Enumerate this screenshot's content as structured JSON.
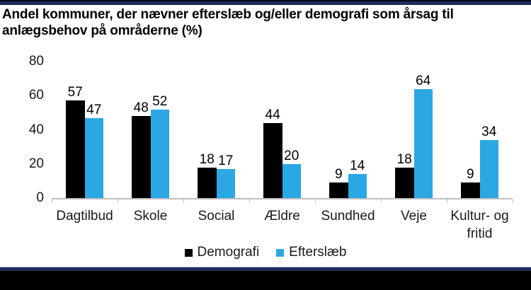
{
  "chart_data": {
    "type": "bar",
    "title": "Andel kommuner, der nævner efterslæb og/eller demografi som årsag til\nanlægsbehov på områderne (%)",
    "categories": [
      "Dagtilbud",
      "Skole",
      "Social",
      "Ældre",
      "Sundhed",
      "Veje",
      "Kultur- og\nfritid"
    ],
    "series": [
      {
        "key": "demografi",
        "name": "Demografi",
        "color": "#000000",
        "values": [
          57,
          48,
          18,
          44,
          9,
          18,
          9
        ]
      },
      {
        "key": "efterslaeb",
        "name": "Efterslæb",
        "color": "#2BA7E4",
        "values": [
          47,
          52,
          17,
          20,
          14,
          64,
          34
        ]
      }
    ],
    "yticks": [
      0,
      20,
      40,
      60,
      80
    ],
    "ylim": [
      0,
      80
    ],
    "xlabel": "",
    "ylabel": "",
    "grid": false,
    "legend_position": "bottom",
    "data_labels": true
  },
  "colors": {
    "stripe_navy": "#1F2B5B",
    "footer_black": "#000000",
    "axis_line": "#BFBFBF",
    "series_demografi": "#000000",
    "series_efterslaeb": "#2BA7E4"
  }
}
